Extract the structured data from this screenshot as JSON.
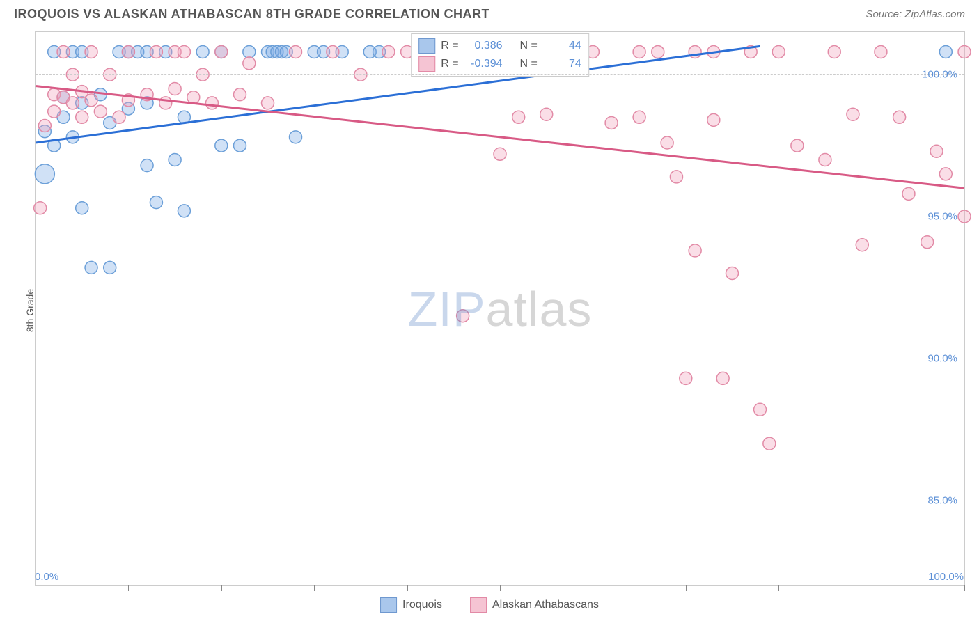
{
  "header": {
    "title": "IROQUOIS VS ALASKAN ATHABASCAN 8TH GRADE CORRELATION CHART",
    "source": "Source: ZipAtlas.com"
  },
  "axes": {
    "y_label": "8th Grade",
    "x_min": 0,
    "x_max": 100,
    "y_min": 82,
    "y_max": 101.5,
    "y_ticks": [
      {
        "value": 85.0,
        "label": "85.0%"
      },
      {
        "value": 90.0,
        "label": "90.0%"
      },
      {
        "value": 95.0,
        "label": "95.0%"
      },
      {
        "value": 100.0,
        "label": "100.0%"
      }
    ],
    "x_ticks_major": [
      0,
      10,
      20,
      30,
      40,
      50,
      60,
      70,
      80,
      90,
      100
    ],
    "x_tick_labels": [
      {
        "value": 0,
        "label": "0.0%"
      },
      {
        "value": 100,
        "label": "100.0%"
      }
    ],
    "grid_color": "#cccccc"
  },
  "series": [
    {
      "name": "Iroquois",
      "color_fill": "rgba(120,170,230,0.35)",
      "color_stroke": "#6b9fd8",
      "swatch_fill": "#a9c7ec",
      "swatch_border": "#6f98cf",
      "trend_color": "#2b6fd6",
      "trend": {
        "x1": 0,
        "y1": 97.6,
        "x2": 78,
        "y2": 101.0
      },
      "stats": {
        "R": "0.386",
        "N": "44"
      },
      "points": [
        {
          "x": 1,
          "y": 96.5,
          "r": 14
        },
        {
          "x": 1,
          "y": 98.0,
          "r": 9
        },
        {
          "x": 2,
          "y": 97.5,
          "r": 9
        },
        {
          "x": 2,
          "y": 100.8,
          "r": 9
        },
        {
          "x": 3,
          "y": 98.5,
          "r": 9
        },
        {
          "x": 3,
          "y": 99.2,
          "r": 9
        },
        {
          "x": 4,
          "y": 97.8,
          "r": 9
        },
        {
          "x": 4,
          "y": 100.8,
          "r": 9
        },
        {
          "x": 5,
          "y": 95.3,
          "r": 9
        },
        {
          "x": 5,
          "y": 99.0,
          "r": 9
        },
        {
          "x": 5,
          "y": 100.8,
          "r": 9
        },
        {
          "x": 6,
          "y": 93.2,
          "r": 9
        },
        {
          "x": 7,
          "y": 99.3,
          "r": 9
        },
        {
          "x": 8,
          "y": 93.2,
          "r": 9
        },
        {
          "x": 8,
          "y": 98.3,
          "r": 9
        },
        {
          "x": 9,
          "y": 100.8,
          "r": 9
        },
        {
          "x": 10,
          "y": 98.8,
          "r": 9
        },
        {
          "x": 10,
          "y": 100.8,
          "r": 9
        },
        {
          "x": 11,
          "y": 100.8,
          "r": 9
        },
        {
          "x": 12,
          "y": 96.8,
          "r": 9
        },
        {
          "x": 12,
          "y": 100.8,
          "r": 9
        },
        {
          "x": 12,
          "y": 99.0,
          "r": 9
        },
        {
          "x": 13,
          "y": 95.5,
          "r": 9
        },
        {
          "x": 14,
          "y": 100.8,
          "r": 9
        },
        {
          "x": 15,
          "y": 97.0,
          "r": 9
        },
        {
          "x": 16,
          "y": 95.2,
          "r": 9
        },
        {
          "x": 16,
          "y": 98.5,
          "r": 9
        },
        {
          "x": 18,
          "y": 100.8,
          "r": 9
        },
        {
          "x": 20,
          "y": 97.5,
          "r": 9
        },
        {
          "x": 20,
          "y": 100.8,
          "r": 9
        },
        {
          "x": 22,
          "y": 97.5,
          "r": 9
        },
        {
          "x": 23,
          "y": 100.8,
          "r": 9
        },
        {
          "x": 25,
          "y": 100.8,
          "r": 9
        },
        {
          "x": 25.5,
          "y": 100.8,
          "r": 9
        },
        {
          "x": 26,
          "y": 100.8,
          "r": 9
        },
        {
          "x": 26.5,
          "y": 100.8,
          "r": 9
        },
        {
          "x": 27,
          "y": 100.8,
          "r": 9
        },
        {
          "x": 28,
          "y": 97.8,
          "r": 9
        },
        {
          "x": 30,
          "y": 100.8,
          "r": 9
        },
        {
          "x": 31,
          "y": 100.8,
          "r": 9
        },
        {
          "x": 33,
          "y": 100.8,
          "r": 9
        },
        {
          "x": 36,
          "y": 100.8,
          "r": 9
        },
        {
          "x": 37,
          "y": 100.8,
          "r": 9
        },
        {
          "x": 98,
          "y": 100.8,
          "r": 9
        }
      ]
    },
    {
      "name": "Alaskan Athabascans",
      "color_fill": "rgba(240,160,185,0.35)",
      "color_stroke": "#e28aa6",
      "swatch_fill": "#f5c4d3",
      "swatch_border": "#e28aa6",
      "trend_color": "#d85a85",
      "trend": {
        "x1": 0,
        "y1": 99.6,
        "x2": 100,
        "y2": 96.0
      },
      "stats": {
        "R": "-0.394",
        "N": "74"
      },
      "points": [
        {
          "x": 0.5,
          "y": 95.3,
          "r": 9
        },
        {
          "x": 1,
          "y": 98.2,
          "r": 9
        },
        {
          "x": 2,
          "y": 98.7,
          "r": 9
        },
        {
          "x": 2,
          "y": 99.3,
          "r": 9
        },
        {
          "x": 3,
          "y": 99.2,
          "r": 9
        },
        {
          "x": 3,
          "y": 100.8,
          "r": 9
        },
        {
          "x": 4,
          "y": 99.0,
          "r": 9
        },
        {
          "x": 4,
          "y": 100.0,
          "r": 9
        },
        {
          "x": 5,
          "y": 98.5,
          "r": 9
        },
        {
          "x": 5,
          "y": 99.4,
          "r": 9
        },
        {
          "x": 6,
          "y": 99.1,
          "r": 9
        },
        {
          "x": 6,
          "y": 100.8,
          "r": 9
        },
        {
          "x": 7,
          "y": 98.7,
          "r": 9
        },
        {
          "x": 8,
          "y": 100.0,
          "r": 9
        },
        {
          "x": 9,
          "y": 98.5,
          "r": 9
        },
        {
          "x": 10,
          "y": 99.1,
          "r": 9
        },
        {
          "x": 10,
          "y": 100.8,
          "r": 9
        },
        {
          "x": 12,
          "y": 99.3,
          "r": 9
        },
        {
          "x": 13,
          "y": 100.8,
          "r": 9
        },
        {
          "x": 14,
          "y": 99.0,
          "r": 9
        },
        {
          "x": 15,
          "y": 99.5,
          "r": 9
        },
        {
          "x": 15,
          "y": 100.8,
          "r": 9
        },
        {
          "x": 16,
          "y": 100.8,
          "r": 9
        },
        {
          "x": 17,
          "y": 99.2,
          "r": 9
        },
        {
          "x": 18,
          "y": 100.0,
          "r": 9
        },
        {
          "x": 19,
          "y": 99.0,
          "r": 9
        },
        {
          "x": 20,
          "y": 100.8,
          "r": 9
        },
        {
          "x": 22,
          "y": 99.3,
          "r": 9
        },
        {
          "x": 23,
          "y": 100.4,
          "r": 9
        },
        {
          "x": 25,
          "y": 99.0,
          "r": 9
        },
        {
          "x": 28,
          "y": 100.8,
          "r": 9
        },
        {
          "x": 32,
          "y": 100.8,
          "r": 9
        },
        {
          "x": 35,
          "y": 100.0,
          "r": 9
        },
        {
          "x": 38,
          "y": 100.8,
          "r": 9
        },
        {
          "x": 40,
          "y": 100.8,
          "r": 9
        },
        {
          "x": 44,
          "y": 100.8,
          "r": 9
        },
        {
          "x": 46,
          "y": 91.5,
          "r": 9
        },
        {
          "x": 49,
          "y": 100.8,
          "r": 9
        },
        {
          "x": 50,
          "y": 97.2,
          "r": 9
        },
        {
          "x": 52,
          "y": 98.5,
          "r": 9
        },
        {
          "x": 55,
          "y": 98.6,
          "r": 9
        },
        {
          "x": 57,
          "y": 100.8,
          "r": 9
        },
        {
          "x": 58,
          "y": 100.8,
          "r": 9
        },
        {
          "x": 60,
          "y": 100.8,
          "r": 9
        },
        {
          "x": 62,
          "y": 98.3,
          "r": 9
        },
        {
          "x": 65,
          "y": 100.8,
          "r": 9
        },
        {
          "x": 65,
          "y": 98.5,
          "r": 9
        },
        {
          "x": 67,
          "y": 100.8,
          "r": 9
        },
        {
          "x": 68,
          "y": 97.6,
          "r": 9
        },
        {
          "x": 69,
          "y": 96.4,
          "r": 9
        },
        {
          "x": 70,
          "y": 89.3,
          "r": 9
        },
        {
          "x": 71,
          "y": 100.8,
          "r": 9
        },
        {
          "x": 71,
          "y": 93.8,
          "r": 9
        },
        {
          "x": 73,
          "y": 100.8,
          "r": 9
        },
        {
          "x": 73,
          "y": 98.4,
          "r": 9
        },
        {
          "x": 74,
          "y": 89.3,
          "r": 9
        },
        {
          "x": 75,
          "y": 93.0,
          "r": 9
        },
        {
          "x": 77,
          "y": 100.8,
          "r": 9
        },
        {
          "x": 78,
          "y": 88.2,
          "r": 9
        },
        {
          "x": 79,
          "y": 87.0,
          "r": 9
        },
        {
          "x": 80,
          "y": 100.8,
          "r": 9
        },
        {
          "x": 82,
          "y": 97.5,
          "r": 9
        },
        {
          "x": 85,
          "y": 97.0,
          "r": 9
        },
        {
          "x": 86,
          "y": 100.8,
          "r": 9
        },
        {
          "x": 88,
          "y": 98.6,
          "r": 9
        },
        {
          "x": 89,
          "y": 94.0,
          "r": 9
        },
        {
          "x": 91,
          "y": 100.8,
          "r": 9
        },
        {
          "x": 93,
          "y": 98.5,
          "r": 9
        },
        {
          "x": 94,
          "y": 95.8,
          "r": 9
        },
        {
          "x": 96,
          "y": 94.1,
          "r": 9
        },
        {
          "x": 97,
          "y": 97.3,
          "r": 9
        },
        {
          "x": 98,
          "y": 96.5,
          "r": 9
        },
        {
          "x": 100,
          "y": 100.8,
          "r": 9
        },
        {
          "x": 100,
          "y": 95.0,
          "r": 9
        }
      ]
    }
  ],
  "legend_bottom": [
    {
      "label": "Iroquois",
      "series_index": 0
    },
    {
      "label": "Alaskan Athabascans",
      "series_index": 1
    }
  ],
  "watermark": {
    "zip": "ZIP",
    "atlas": "atlas"
  },
  "stats_labels": {
    "R": "R =",
    "N": "N ="
  }
}
